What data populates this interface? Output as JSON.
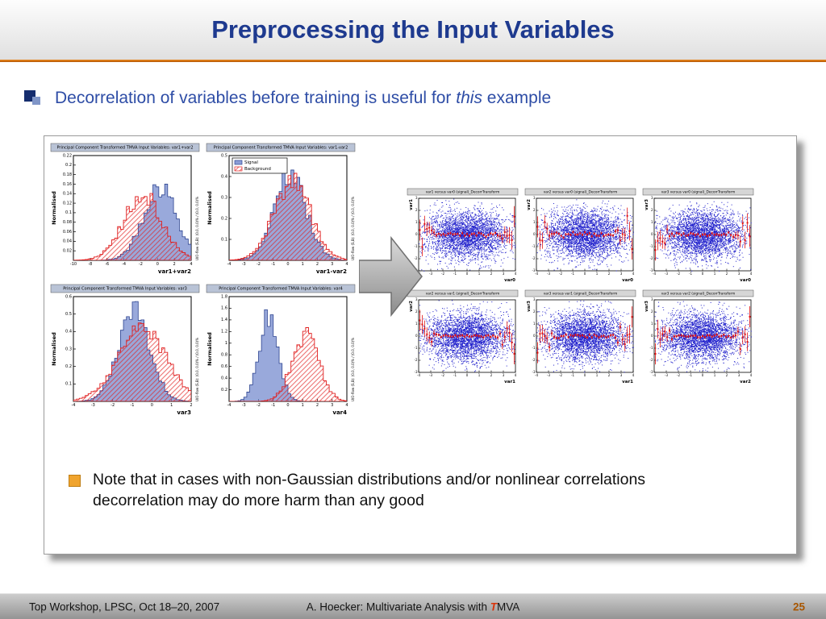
{
  "header": {
    "title": "Preprocessing the Input Variables"
  },
  "bullet": {
    "prefix": "Decorrelation of variables before training is useful for ",
    "emphasis": "this",
    "suffix": " example"
  },
  "note": {
    "text": "Note that in cases with non-Gaussian distributions and/or nonlinear correlations decorrelation may do more harm than any good"
  },
  "footer": {
    "left": "Top Workshop, LPSC, Oct 18–20, 2007",
    "center_prefix": "A. Hoecker: Multivariate Analysis with ",
    "center_brand_t": "T",
    "center_brand_rest": "MVA",
    "page": "25"
  },
  "colors": {
    "title_blue": "#1e3a8f",
    "bullet_blue": "#2e4da6",
    "accent_orange": "#c86614",
    "hist_title_bg": "#b9c3d6",
    "scatter_title_bg": "#d6d6d6",
    "signal_fill": "#6e84cc",
    "signal_edge": "#2c4390",
    "background_red": "#e02020",
    "scatter_point_blue": "#2121cc",
    "profile_red": "#e01010",
    "note_bullet": "#f0a42e",
    "page_number": "#a85600"
  },
  "chart_data": {
    "histograms": [
      {
        "type": "histogram",
        "title": "Principal Component Transformed TMVA Input Variables: var1+var2",
        "xlabel": "var1+var2",
        "ylabel": "Normalised",
        "overflow_label": "U/O-flow (S,B): (0.0, 0.0)% / (0.0, 0.0)%",
        "xmin": -10,
        "xmax": 4,
        "bins": 40,
        "ymax": 0.22,
        "ytick_step": 0.02,
        "legend": false,
        "seed": 1,
        "series": [
          {
            "name": "Signal",
            "mean": 0.3,
            "sigma": 2.0,
            "peak": 0.155
          },
          {
            "name": "Background",
            "mean": -1.7,
            "sigma": 2.3,
            "peak": 0.135
          }
        ]
      },
      {
        "type": "histogram",
        "title": "Principal Component Transformed TMVA Input Variables: var1-var2",
        "xlabel": "var1-var2",
        "ylabel": "Normalised",
        "overflow_label": "U/O-flow (S,B): (0.0, 0.0)% / (0.0, 0.0)%",
        "xmin": -4,
        "xmax": 4,
        "bins": 40,
        "ymax": 0.5,
        "ytick_step": 0.1,
        "legend": true,
        "seed": 2,
        "series": [
          {
            "name": "Signal",
            "mean": 0.15,
            "sigma": 1.1,
            "peak": 0.4
          },
          {
            "name": "Background",
            "mean": 0.3,
            "sigma": 1.25,
            "peak": 0.37
          }
        ]
      },
      {
        "type": "histogram",
        "title": "Principal Component Transformed TMVA Input Variables: var3",
        "xlabel": "var3",
        "ylabel": "Normalised",
        "overflow_label": "U/O-flow (S,B): (0.0, 0.0)% / (0.0, 0.0)%",
        "xmin": -4,
        "xmax": 2,
        "bins": 40,
        "ymax": 0.6,
        "ytick_step": 0.1,
        "legend": false,
        "seed": 3,
        "series": [
          {
            "name": "Signal",
            "mean": -0.9,
            "sigma": 0.8,
            "peak": 0.52
          },
          {
            "name": "Background",
            "mean": -0.5,
            "sigma": 1.25,
            "peak": 0.4
          }
        ]
      },
      {
        "type": "histogram",
        "title": "Principal Component Transformed TMVA Input Variables: var4",
        "xlabel": "var4",
        "ylabel": "Normalised",
        "overflow_label": "U/O-flow (S,B): (0.0, 0.0)% / (0.0, 0.0)%",
        "xmin": -4,
        "xmax": 4,
        "bins": 40,
        "ymax": 1.8,
        "ytick_step": 0.2,
        "legend": false,
        "seed": 4,
        "series": [
          {
            "name": "Signal",
            "mean": -1.3,
            "sigma": 0.65,
            "peak": 1.45
          },
          {
            "name": "Background",
            "mean": 1.2,
            "sigma": 0.9,
            "peak": 1.15
          }
        ]
      }
    ],
    "scatter_defaults": {
      "type": "scatter",
      "xmin": -4,
      "xmax": 4,
      "ymin": -3,
      "ymax": 3,
      "sigma_x": 1.7,
      "sigma_y": 1.0,
      "n_points": 3200
    },
    "scatters": [
      {
        "title": "var1 versus var0 (signal)_DecorrTransform",
        "xlabel": "var0",
        "ylabel": "var1",
        "seed": 11
      },
      {
        "title": "var2 versus var0 (signal)_DecorrTransform",
        "xlabel": "var0",
        "ylabel": "var2",
        "seed": 12
      },
      {
        "title": "var3 versus var0 (signal)_DecorrTransform",
        "xlabel": "var0",
        "ylabel": "var3",
        "seed": 13
      },
      {
        "title": "var2 versus var1 (signal)_DecorrTransform",
        "xlabel": "var1",
        "ylabel": "var2",
        "seed": 14
      },
      {
        "title": "var3 versus var1 (signal)_DecorrTransform",
        "xlabel": "var1",
        "ylabel": "var3",
        "seed": 15
      },
      {
        "title": "var3 versus var2 (signal)_DecorrTransform",
        "xlabel": "var2",
        "ylabel": "var3",
        "seed": 16
      }
    ]
  }
}
